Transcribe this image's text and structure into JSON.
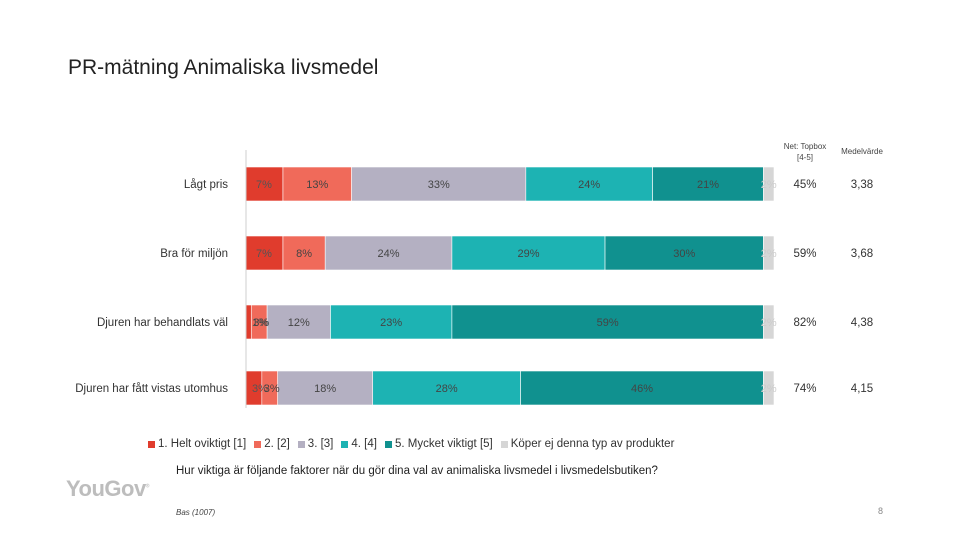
{
  "page": {
    "title": "PR-mätning Animaliska livsmedel",
    "question": "Hur viktiga är följande faktorer när du gör dina val av animaliska livsmedel i livsmedelsbutiken?",
    "base": "Bas (1007)",
    "page_number": "8",
    "logo_text": "YouGov",
    "logo_mark": "®"
  },
  "colors": {
    "s1": "#e03c2d",
    "s2": "#f06a5a",
    "s3": "#b4b0c2",
    "s4": "#1db3b3",
    "s5": "#10918f",
    "s6": "#d6d6d6"
  },
  "chart_data": {
    "type": "bar",
    "orientation": "horizontal",
    "stacked": true,
    "categories": [
      "Lågt pris",
      "Bra för miljön",
      "Djuren har behandlats väl",
      "Djuren har fått vistas utomhus"
    ],
    "series": [
      {
        "name": "1. Helt oviktigt [1]",
        "values": [
          7,
          7,
          1,
          3
        ],
        "labels": [
          "7%",
          "7%",
          "1%",
          "3%"
        ]
      },
      {
        "name": "2. [2]",
        "values": [
          13,
          8,
          3,
          3
        ],
        "labels": [
          "13%",
          "8%",
          "3%",
          "3%"
        ]
      },
      {
        "name": "3. [3]",
        "values": [
          33,
          24,
          12,
          18
        ],
        "labels": [
          "33%",
          "24%",
          "12%",
          "18%"
        ]
      },
      {
        "name": "4. [4]",
        "values": [
          24,
          29,
          23,
          28
        ],
        "labels": [
          "24%",
          "29%",
          "23%",
          "28%"
        ]
      },
      {
        "name": "5. Mycket viktigt [5]",
        "values": [
          21,
          30,
          59,
          46
        ],
        "labels": [
          "21%",
          "30%",
          "59%",
          "46%"
        ]
      },
      {
        "name": "Köper ej denna typ av produkter",
        "values": [
          2,
          2,
          2,
          2
        ],
        "labels": [
          "2%",
          "2%",
          "2%",
          "2%"
        ]
      }
    ],
    "xlim": [
      0,
      100
    ],
    "net_header": "Net: Topbox [4-5]",
    "net_values": [
      "45%",
      "59%",
      "82%",
      "74%"
    ],
    "mean_header": "Medelvärde",
    "mean_values": [
      "3,38",
      "3,68",
      "4,38",
      "4,15"
    ],
    "legend_position": "bottom"
  }
}
